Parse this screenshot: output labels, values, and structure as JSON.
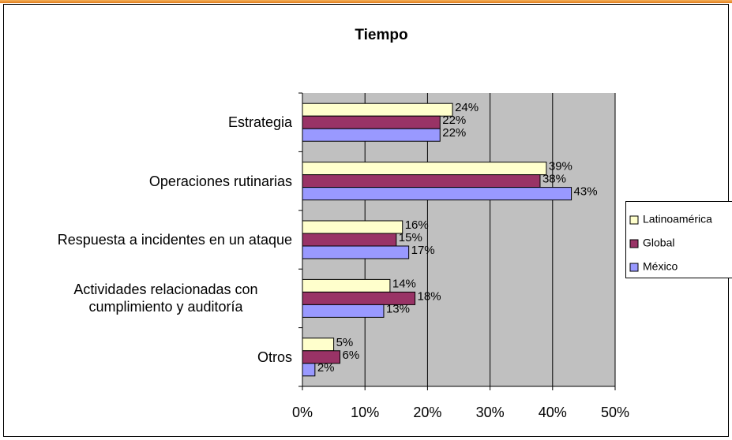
{
  "chart_data": {
    "type": "hbar",
    "title": "Tiempo",
    "categories": [
      "Estrategia",
      "Operaciones rutinarias",
      "Respuesta a incidentes en un ataque",
      "Actividades relacionadas con cumplimiento y auditoría",
      "Otros"
    ],
    "series": [
      {
        "name": "Latinoamérica",
        "color": "#ffffcc",
        "values": [
          24,
          39,
          16,
          14,
          5
        ],
        "value_labels": [
          "24%",
          "39%",
          "16%",
          "14%",
          "5%"
        ]
      },
      {
        "name": "Global",
        "color": "#993366",
        "values": [
          22,
          38,
          15,
          18,
          6
        ],
        "value_labels": [
          "22%",
          "38%",
          "15%",
          "18%",
          "6%"
        ]
      },
      {
        "name": "México",
        "color": "#9999ff",
        "values": [
          22,
          43,
          17,
          13,
          2
        ],
        "value_labels": [
          "22%",
          "43%",
          "17%",
          "13%",
          "2%"
        ]
      }
    ],
    "xlim": [
      0,
      50
    ],
    "xticks": [
      {
        "value": 0,
        "label": "0%"
      },
      {
        "value": 10,
        "label": "10%"
      },
      {
        "value": 20,
        "label": "20%"
      },
      {
        "value": 30,
        "label": "30%"
      },
      {
        "value": 40,
        "label": "40%"
      },
      {
        "value": 50,
        "label": "50%"
      }
    ],
    "grid": true,
    "legend": "right",
    "plot_background": "#c0c0c0"
  }
}
